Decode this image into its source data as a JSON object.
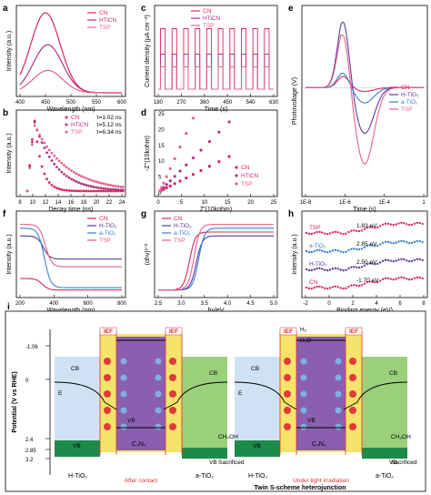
{
  "colors": {
    "cn": "#e0245a",
    "hticn": "#b0337f",
    "tsp": "#e8608a",
    "ti_h": "#5a3aa0",
    "ti_a": "#3a7fd0",
    "ti_tsp": "#e0245a",
    "ief": "#e03030"
  },
  "chart_data": [
    {
      "panel": "a",
      "type": "line",
      "xlabel": "Wavelength (nm)",
      "ylabel": "Intensity (a.u.)",
      "xticks": [
        "400",
        "450",
        "500",
        "550",
        "600"
      ],
      "xlim": [
        400,
        620
      ],
      "series": [
        {
          "name": "CN",
          "peak_x": 455,
          "peak_y": 1.0
        },
        {
          "name": "HTiCN",
          "peak_x": 460,
          "peak_y": 0.6
        },
        {
          "name": "TSP",
          "peak_x": 460,
          "peak_y": 0.28
        }
      ]
    },
    {
      "panel": "b",
      "type": "scatter",
      "xlabel": "Decay time (ns)",
      "ylabel": "Intensity (a.u.)",
      "xticks": [
        "8",
        "10",
        "12",
        "14",
        "16",
        "18",
        "20",
        "22",
        "24"
      ],
      "xlim": [
        8,
        24
      ],
      "series": [
        {
          "name": "CN",
          "tau": "τ=1.02 ns"
        },
        {
          "name": "HTiCN",
          "tau": "τ=5.12 ns"
        },
        {
          "name": "TSP",
          "tau": "τ=6.34 ns"
        }
      ]
    },
    {
      "panel": "c",
      "type": "line",
      "xlabel": "Time (s)",
      "ylabel": "Current density (μA cm⁻²)",
      "xticks": [
        "180",
        "270",
        "360",
        "450",
        "540",
        "630"
      ],
      "series": [
        {
          "name": "CN",
          "level": 0.95
        },
        {
          "name": "HTiCN",
          "level": 0.55
        },
        {
          "name": "TSP",
          "level": 0.35
        }
      ]
    },
    {
      "panel": "d",
      "type": "scatter",
      "xlabel": "Z'(10kohm)",
      "ylabel": "-Z''(10kohm)",
      "xticks": [
        "0",
        "5",
        "10",
        "15",
        "20",
        "25"
      ],
      "yticks": [
        "0",
        "5",
        "10",
        "15",
        "20",
        "25"
      ],
      "series": [
        {
          "name": "CN"
        },
        {
          "name": "HTiCN"
        },
        {
          "name": "TSP"
        }
      ]
    },
    {
      "panel": "e",
      "type": "line",
      "xlabel": "Time (s)",
      "ylabel": "Photovoltage (V)",
      "xticks": [
        "1E-8",
        "1E-6",
        "1E-4",
        "1"
      ],
      "series": [
        {
          "name": "CN"
        },
        {
          "name": "H-TiO₂"
        },
        {
          "name": "a-TiO₂"
        },
        {
          "name": "TSP"
        }
      ]
    },
    {
      "panel": "f",
      "type": "line",
      "xlabel": "Wavelength (nm)",
      "ylabel": "Intensity (a.u.)",
      "xticks": [
        "200",
        "400",
        "600",
        "800"
      ],
      "series": [
        {
          "name": "CN"
        },
        {
          "name": "H-TiO₂"
        },
        {
          "name": "a-TiO₂"
        },
        {
          "name": "TSP"
        }
      ]
    },
    {
      "panel": "g",
      "type": "line",
      "xlabel": "hv/eV",
      "ylabel": "(αhv)¹ᐟ²",
      "xticks": [
        "2.5",
        "3.0",
        "3.5",
        "4.0",
        "4.5",
        "5.0"
      ],
      "series": [
        {
          "name": "CN"
        },
        {
          "name": "H-TiO₂"
        },
        {
          "name": "a-TiO₂"
        },
        {
          "name": "TSP"
        }
      ]
    },
    {
      "panel": "h",
      "type": "scatter",
      "xlabel": "Binding energy (eV)",
      "ylabel": "Intensity (a.u.)",
      "xticks": [
        "-2",
        "0",
        "2",
        "4",
        "6",
        "8"
      ],
      "series": [
        {
          "name": "TSP",
          "vb": "1.83 eV"
        },
        {
          "name": "a-TiO₂",
          "vb": "2.85 eV"
        },
        {
          "name": "H-TiO₂",
          "vb": "2.50 eV"
        },
        {
          "name": "CN",
          "vb": "-1.70 eV"
        }
      ]
    }
  ],
  "panel_i": {
    "label": "i",
    "ylabel": "Potential (V vs RHE)",
    "yticks": [
      "-1.06",
      "0",
      "2.4",
      "2.85",
      "3.2"
    ],
    "ief": "IEF",
    "cb": "CB",
    "vb": "VB",
    "ef": "E",
    "left": {
      "h": "H-TiO₂",
      "c": "C₃N₄",
      "a": "a-TiO₂",
      "caption": "After contact"
    },
    "right": {
      "h": "H-TiO₂",
      "c": "C₃N₄",
      "a": "a-TiO₂",
      "caption": "Under light irradiation",
      "h2": "H₂",
      "h2o": "H₂O",
      "ch3oh": "CH₃OH",
      "sac": "Sacrificed"
    },
    "title": "Twin S-scheme heterojunction"
  }
}
